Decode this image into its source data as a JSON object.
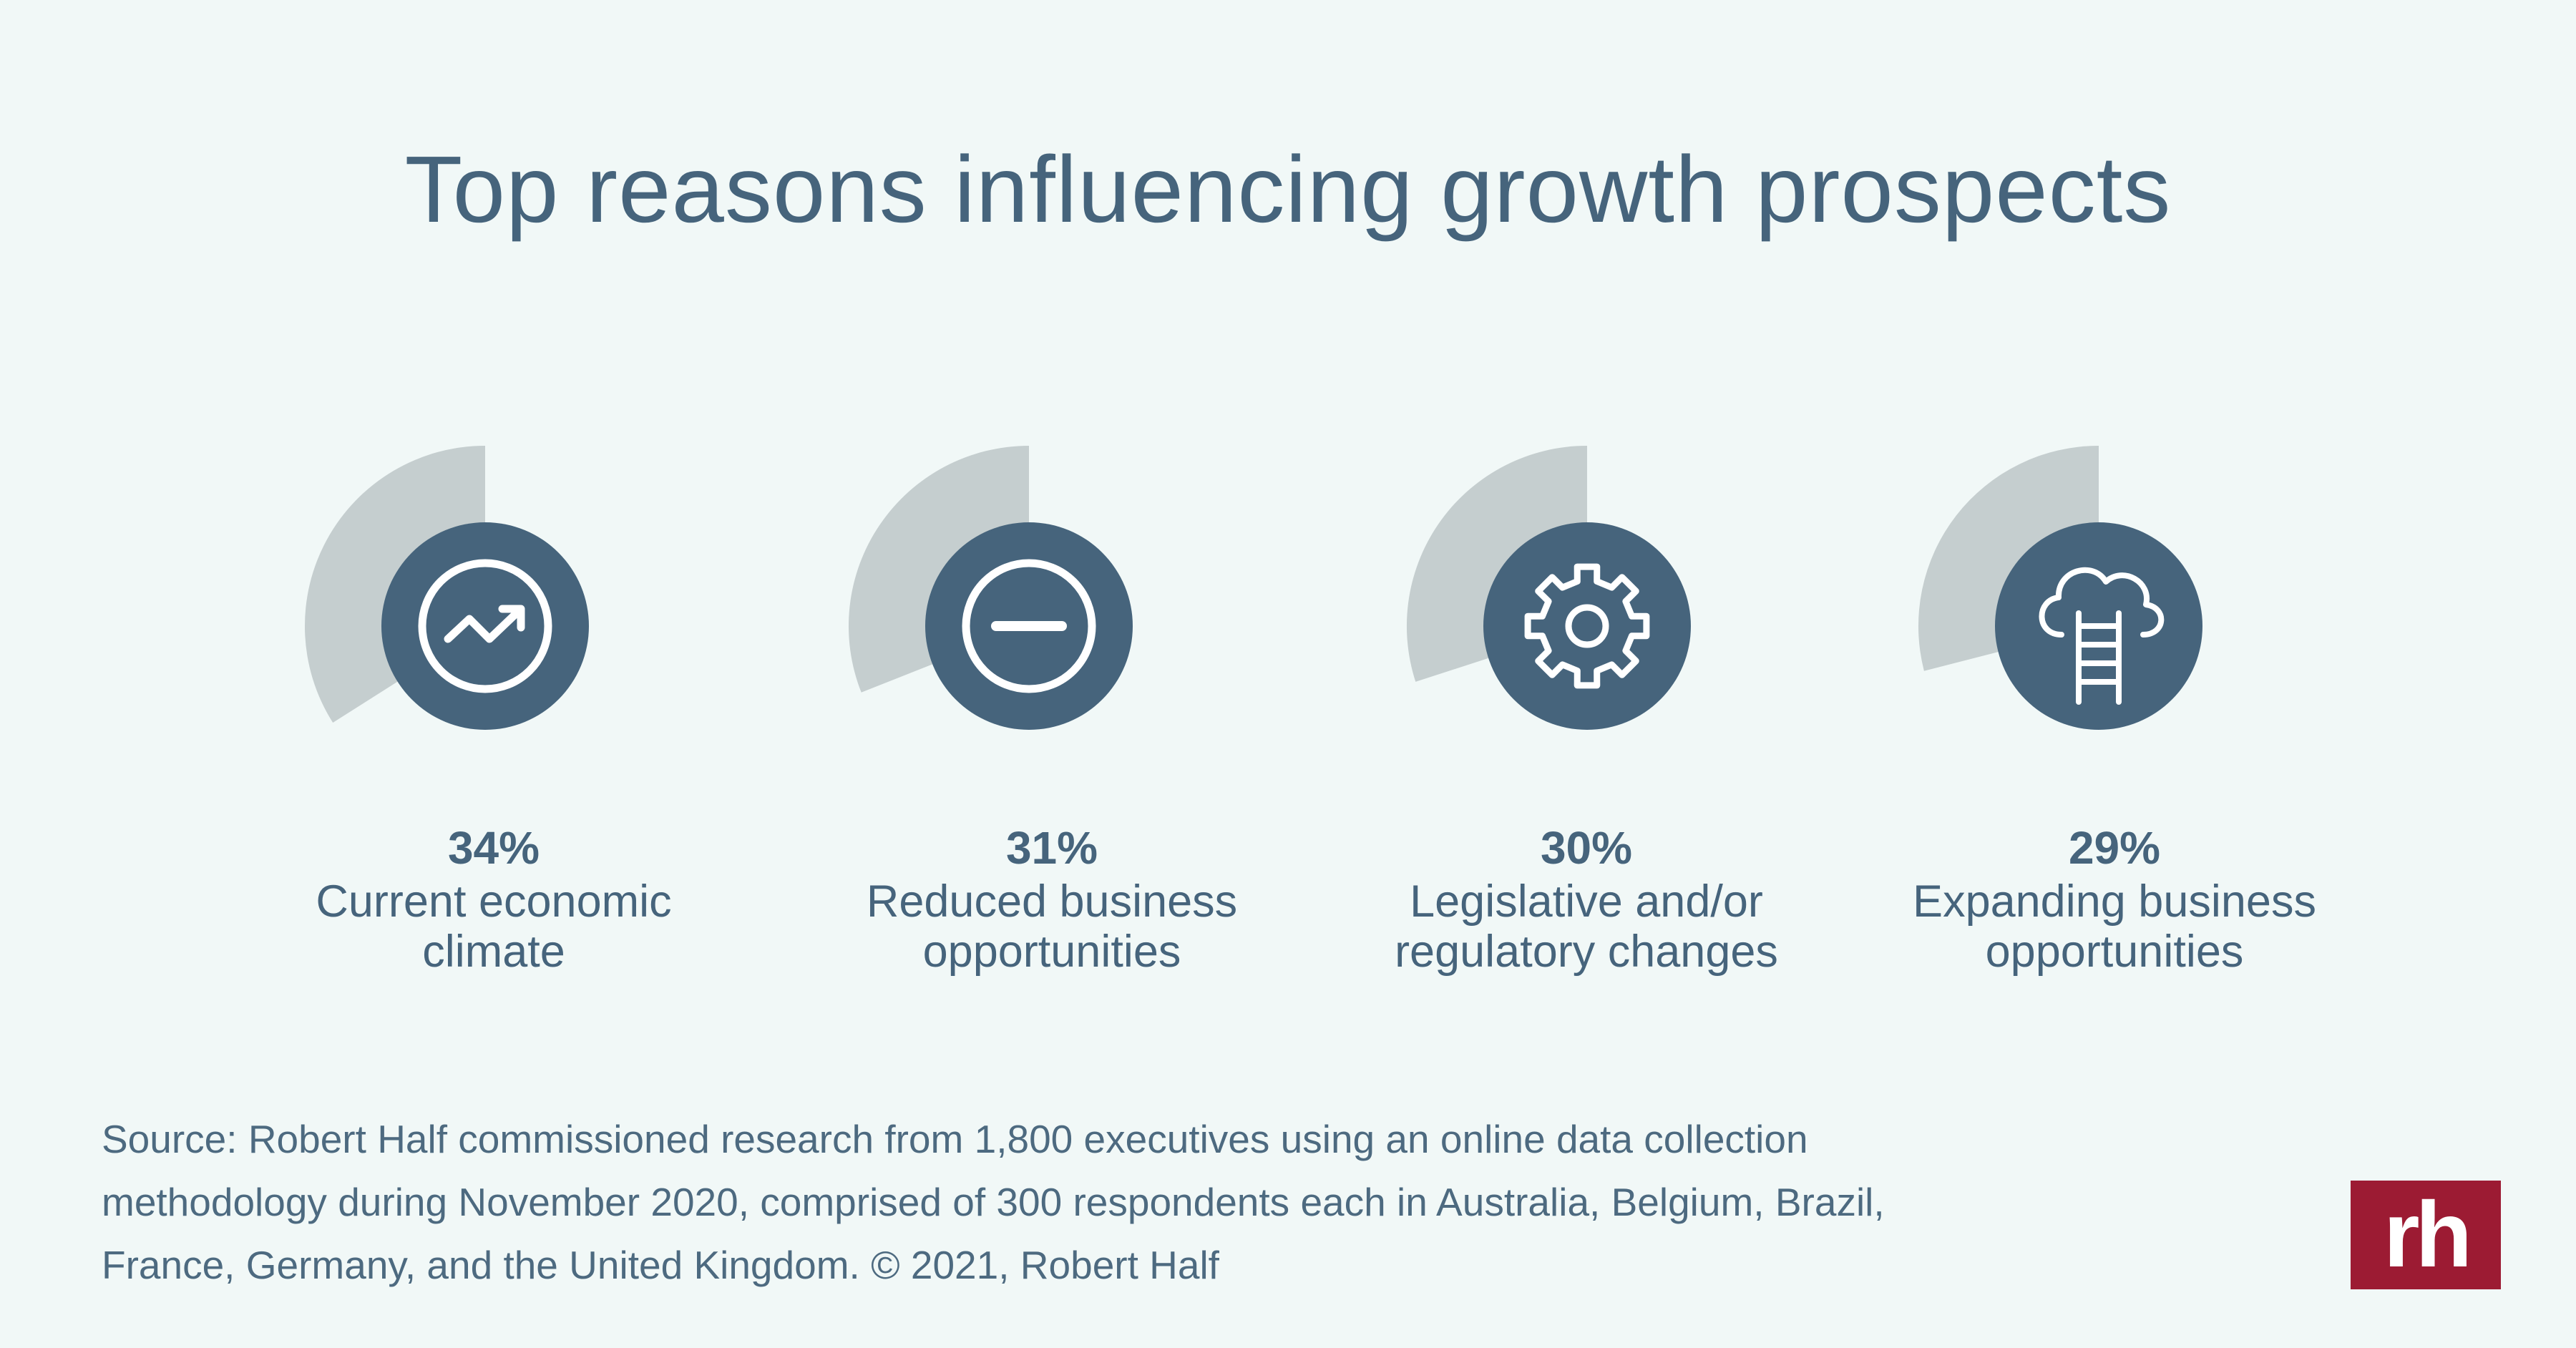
{
  "header": {
    "title": "Top reasons influencing growth prospects"
  },
  "chart_data": {
    "type": "pie",
    "title": "Top reasons influencing growth prospects",
    "unit": "%",
    "categories": [
      "Current economic climate",
      "Reduced business opportunities",
      "Legislative and/or regulatory changes",
      "Expanding business opportunities"
    ],
    "values": [
      34,
      31,
      30,
      29
    ],
    "value_labels": [
      "34%",
      "31%",
      "30%",
      "29%"
    ],
    "label_lines": [
      [
        "Current economic",
        "climate"
      ],
      [
        "Reduced business",
        "opportunities"
      ],
      [
        "Legislative and/or",
        "regulatory changes"
      ],
      [
        "Expanding business",
        "opportunities"
      ]
    ],
    "icons": [
      "trend-up-icon",
      "minus-circle-icon",
      "gear-icon",
      "cloud-ladder-icon"
    ],
    "colors": {
      "wedge": "#c5cecf",
      "circle": "#46647c",
      "icon": "#ffffff",
      "text": "#46647c"
    }
  },
  "footer": {
    "source_lines": [
      "Source: Robert Half commissioned research from 1,800 executives using an online data collection",
      "methodology during November 2020, comprised of 300 respondents each in Australia, Belgium, Brazil,",
      "France, Germany, and the United Kingdom. © 2021, Robert Half"
    ],
    "logo_text": "rh"
  },
  "colors": {
    "background": "#f1f8f7",
    "brand": "#9c1b33"
  }
}
